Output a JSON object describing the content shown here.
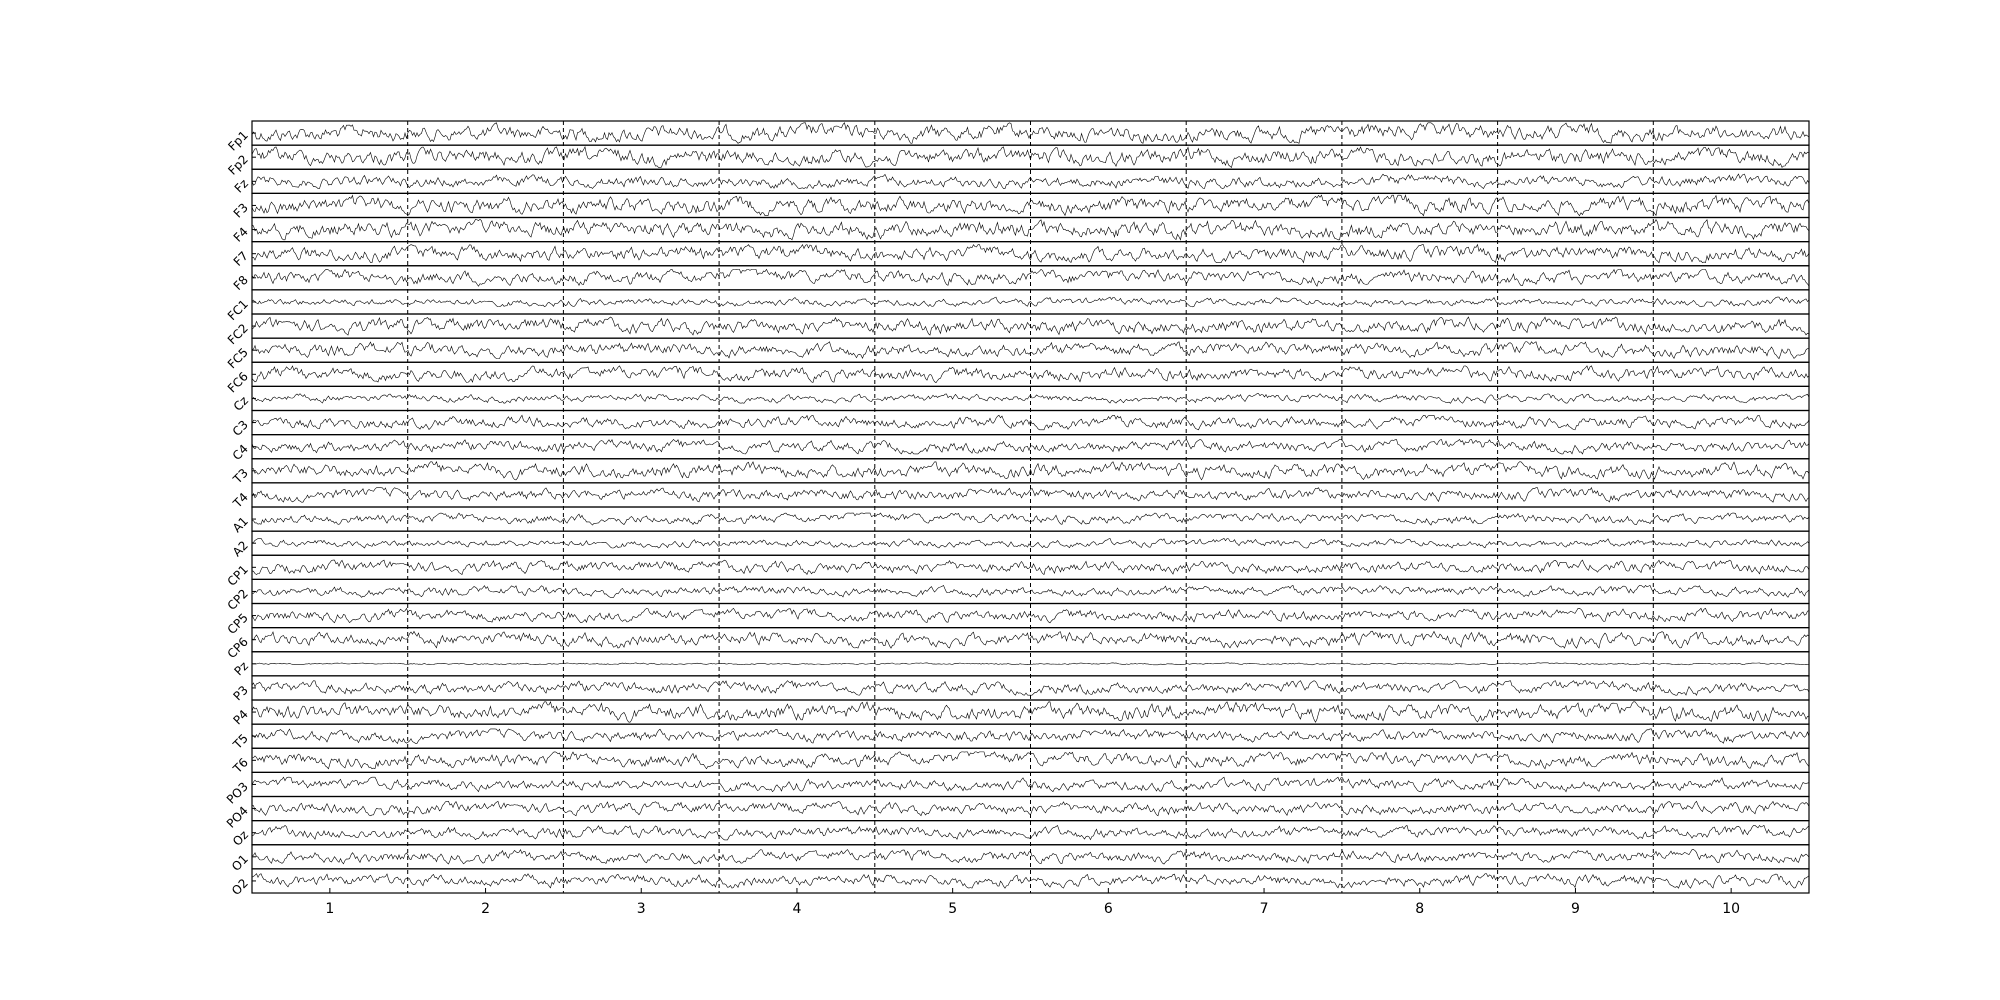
{
  "chart_data": {
    "type": "line",
    "title": "",
    "xlabel": "",
    "ylabel": "",
    "xlim": [
      0.5,
      10.5
    ],
    "x_ticks": [
      1,
      2,
      3,
      4,
      5,
      6,
      7,
      8,
      9,
      10
    ],
    "x_tick_labels": [
      "1",
      "2",
      "3",
      "4",
      "5",
      "6",
      "7",
      "8",
      "9",
      "10"
    ],
    "epoch_boundaries": [
      1.5,
      2.5,
      3.5,
      4.5,
      5.5,
      6.5,
      7.5,
      8.5,
      9.5
    ],
    "boundary_style": "dashed",
    "grid": false,
    "legend": "none",
    "line_color": "#000000",
    "channels": [
      {
        "name": "Fp1",
        "rel_amp": 0.85
      },
      {
        "name": "Fp2",
        "rel_amp": 0.85
      },
      {
        "name": "Fz",
        "rel_amp": 0.6
      },
      {
        "name": "F3",
        "rel_amp": 0.85
      },
      {
        "name": "F4",
        "rel_amp": 0.85
      },
      {
        "name": "F7",
        "rel_amp": 0.75
      },
      {
        "name": "F8",
        "rel_amp": 0.7
      },
      {
        "name": "FC1",
        "rel_amp": 0.4
      },
      {
        "name": "FC2",
        "rel_amp": 0.75
      },
      {
        "name": "FC5",
        "rel_amp": 0.7
      },
      {
        "name": "FC6",
        "rel_amp": 0.7
      },
      {
        "name": "Cz",
        "rel_amp": 0.4
      },
      {
        "name": "C3",
        "rel_amp": 0.6
      },
      {
        "name": "C4",
        "rel_amp": 0.6
      },
      {
        "name": "T3",
        "rel_amp": 0.75
      },
      {
        "name": "T4",
        "rel_amp": 0.6
      },
      {
        "name": "A1",
        "rel_amp": 0.5
      },
      {
        "name": "A2",
        "rel_amp": 0.4
      },
      {
        "name": "CP1",
        "rel_amp": 0.6
      },
      {
        "name": "CP2",
        "rel_amp": 0.5
      },
      {
        "name": "CP5",
        "rel_amp": 0.6
      },
      {
        "name": "CP6",
        "rel_amp": 0.7
      },
      {
        "name": "Pz",
        "rel_amp": 0.08
      },
      {
        "name": "P3",
        "rel_amp": 0.6
      },
      {
        "name": "P4",
        "rel_amp": 0.85
      },
      {
        "name": "T5",
        "rel_amp": 0.6
      },
      {
        "name": "T6",
        "rel_amp": 0.7
      },
      {
        "name": "PO3",
        "rel_amp": 0.6
      },
      {
        "name": "PO4",
        "rel_amp": 0.6
      },
      {
        "name": "Oz",
        "rel_amp": 0.6
      },
      {
        "name": "O1",
        "rel_amp": 0.6
      },
      {
        "name": "O2",
        "rel_amp": 0.6
      }
    ]
  }
}
